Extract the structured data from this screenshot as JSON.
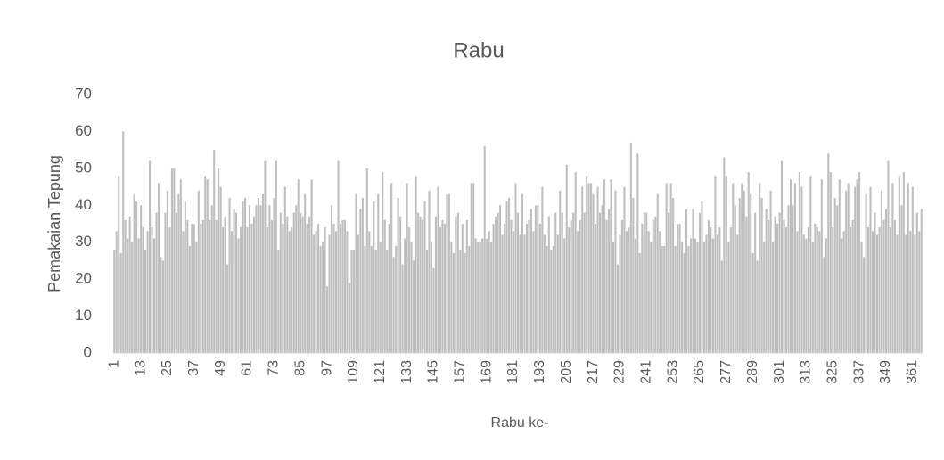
{
  "chart_data": {
    "type": "bar",
    "title": "Rabu",
    "x_label": "Rabu ke-",
    "y_label": "Pemakaian Tepung",
    "categories": [
      "1",
      null,
      null,
      null,
      null,
      null,
      null,
      null,
      null,
      null,
      null,
      null,
      "13",
      null,
      null,
      null,
      null,
      null,
      null,
      null,
      null,
      null,
      null,
      null,
      "25",
      null,
      null,
      null,
      null,
      null,
      null,
      null,
      null,
      null,
      null,
      null,
      "37",
      null,
      null,
      null,
      null,
      null,
      null,
      null,
      null,
      null,
      null,
      null,
      "49",
      null,
      null,
      null,
      null,
      null,
      null,
      null,
      null,
      null,
      null,
      null,
      "61",
      null,
      null,
      null,
      null,
      null,
      null,
      null,
      null,
      null,
      null,
      null,
      "73",
      null,
      null,
      null,
      null,
      null,
      null,
      null,
      null,
      null,
      null,
      null,
      "85",
      null,
      null,
      null,
      null,
      null,
      null,
      null,
      null,
      null,
      null,
      null,
      "97",
      null,
      null,
      null,
      null,
      null,
      null,
      null,
      null,
      null,
      null,
      null,
      "109",
      null,
      null,
      null,
      null,
      null,
      null,
      null,
      null,
      null,
      null,
      null,
      "121",
      null,
      null,
      null,
      null,
      null,
      null,
      null,
      null,
      null,
      null,
      null,
      "133",
      null,
      null,
      null,
      null,
      null,
      null,
      null,
      null,
      null,
      null,
      null,
      "145",
      null,
      null,
      null,
      null,
      null,
      null,
      null,
      null,
      null,
      null,
      null,
      "157",
      null,
      null,
      null,
      null,
      null,
      null,
      null,
      null,
      null,
      null,
      null,
      "169",
      null,
      null,
      null,
      null,
      null,
      null,
      null,
      null,
      null,
      null,
      null,
      "181",
      null,
      null,
      null,
      null,
      null,
      null,
      null,
      null,
      null,
      null,
      null,
      "193",
      null,
      null,
      null,
      null,
      null,
      null,
      null,
      null,
      null,
      null,
      null,
      "205",
      null,
      null,
      null,
      null,
      null,
      null,
      null,
      null,
      null,
      null,
      null,
      "217",
      null,
      null,
      null,
      null,
      null,
      null,
      null,
      null,
      null,
      null,
      null,
      "229",
      null,
      null,
      null,
      null,
      null,
      null,
      null,
      null,
      null,
      null,
      null,
      "241",
      null,
      null,
      null,
      null,
      null,
      null,
      null,
      null,
      null,
      null,
      null,
      "253",
      null,
      null,
      null,
      null,
      null,
      null,
      null,
      null,
      null,
      null,
      null,
      "265",
      null,
      null,
      null,
      null,
      null,
      null,
      null,
      null,
      null,
      null,
      null,
      "277",
      null,
      null,
      null,
      null,
      null,
      null,
      null,
      null,
      null,
      null,
      null,
      "289",
      null,
      null,
      null,
      null,
      null,
      null,
      null,
      null,
      null,
      null,
      null,
      "301",
      null,
      null,
      null,
      null,
      null,
      null,
      null,
      null,
      null,
      null,
      null,
      "313",
      null,
      null,
      null,
      null,
      null,
      null,
      null,
      null,
      null,
      null,
      null,
      "325",
      null,
      null,
      null,
      null,
      null,
      null,
      null,
      null,
      null,
      null,
      null,
      "337",
      null,
      null,
      null,
      null,
      null,
      null,
      null,
      null,
      null,
      null,
      null,
      "349",
      null,
      null,
      null,
      null,
      null,
      null,
      null,
      null,
      null,
      null,
      null,
      "361",
      null,
      null,
      null,
      null
    ],
    "values": [
      28,
      33,
      48,
      27,
      60,
      36,
      31,
      37,
      30,
      43,
      41,
      31,
      40,
      34,
      28,
      33,
      52,
      34,
      31,
      38,
      46,
      26,
      25,
      38,
      44,
      34,
      50,
      50,
      38,
      43,
      47,
      33,
      41,
      36,
      29,
      35,
      35,
      30,
      44,
      35,
      36,
      48,
      47,
      36,
      40,
      55,
      36,
      50,
      45,
      34,
      37,
      24,
      42,
      33,
      39,
      38,
      31,
      34,
      41,
      42,
      34,
      40,
      35,
      37,
      40,
      42,
      40,
      43,
      52,
      34,
      40,
      36,
      42,
      52,
      28,
      38,
      35,
      45,
      37,
      33,
      34,
      38,
      40,
      47,
      38,
      37,
      43,
      35,
      37,
      47,
      32,
      33,
      35,
      29,
      30,
      34,
      18,
      32,
      40,
      35,
      33,
      52,
      35,
      36,
      36,
      33,
      19,
      28,
      28,
      43,
      32,
      39,
      42,
      29,
      50,
      33,
      29,
      41,
      28,
      43,
      30,
      49,
      36,
      28,
      35,
      46,
      26,
      29,
      42,
      37,
      24,
      31,
      46,
      34,
      30,
      25,
      48,
      38,
      37,
      36,
      41,
      28,
      44,
      30,
      23,
      37,
      45,
      34,
      36,
      35,
      43,
      43,
      30,
      27,
      37,
      38,
      28,
      35,
      27,
      36,
      29,
      46,
      46,
      31,
      30,
      30,
      31,
      56,
      31,
      33,
      30,
      35,
      37,
      38,
      40,
      32,
      35,
      41,
      42,
      36,
      33,
      46,
      38,
      32,
      43,
      32,
      35,
      36,
      39,
      33,
      40,
      40,
      35,
      45,
      32,
      29,
      37,
      28,
      29,
      38,
      32,
      44,
      38,
      31,
      51,
      34,
      36,
      38,
      49,
      33,
      36,
      45,
      38,
      48,
      46,
      46,
      43,
      35,
      45,
      38,
      40,
      47,
      36,
      39,
      47,
      30,
      44,
      24,
      32,
      36,
      45,
      33,
      34,
      57,
      42,
      31,
      54,
      27,
      35,
      38,
      38,
      33,
      30,
      36,
      37,
      43,
      33,
      29,
      29,
      46,
      38,
      46,
      42,
      29,
      35,
      35,
      30,
      27,
      39,
      29,
      31,
      39,
      31,
      30,
      38,
      41,
      30,
      32,
      36,
      34,
      31,
      48,
      32,
      34,
      25,
      53,
      48,
      30,
      34,
      46,
      40,
      32,
      42,
      46,
      44,
      37,
      49,
      43,
      27,
      38,
      25,
      46,
      42,
      30,
      39,
      36,
      44,
      30,
      37,
      35,
      38,
      52,
      36,
      34,
      40,
      47,
      40,
      46,
      33,
      49,
      45,
      32,
      31,
      34,
      48,
      30,
      35,
      34,
      33,
      47,
      26,
      31,
      54,
      49,
      34,
      42,
      40,
      47,
      31,
      33,
      44,
      46,
      34,
      36,
      45,
      47,
      49,
      30,
      26,
      43,
      34,
      45,
      33,
      38,
      32,
      34,
      44,
      36,
      39,
      52,
      34,
      46,
      36,
      32,
      48,
      40,
      49,
      32,
      46,
      33,
      45,
      32,
      38,
      33,
      39
    ],
    "color": "#bfbfbf",
    "ylim": [
      0,
      70
    ],
    "yticks": [
      0,
      10,
      20,
      30,
      40,
      50,
      60,
      70
    ],
    "grid": false
  }
}
